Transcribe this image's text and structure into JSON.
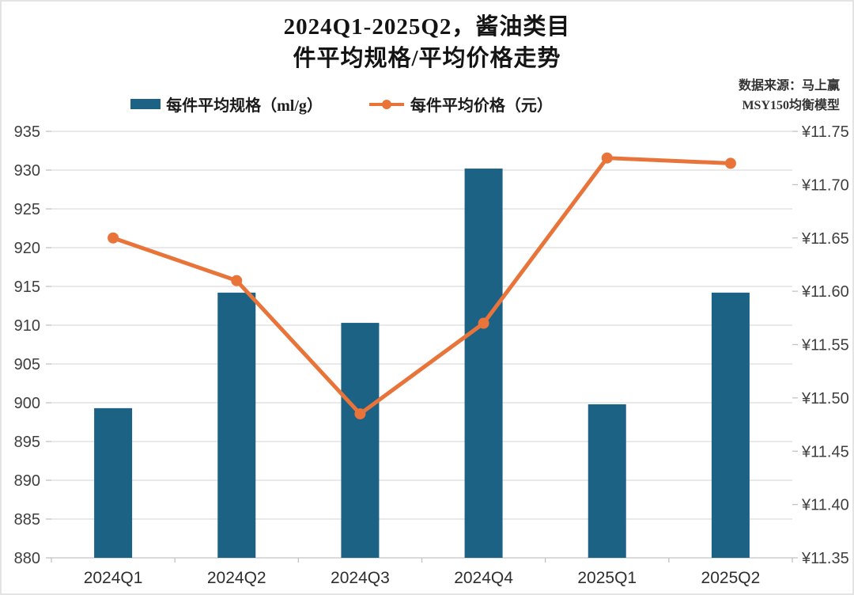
{
  "header": {
    "title_line1": "2024Q1-2025Q2，酱油类目",
    "title_line2": "件平均规格/平均价格走势"
  },
  "source": {
    "line1": "数据来源：马上赢",
    "line2": "MSY150均衡模型"
  },
  "colors": {
    "bar": "#1c6285",
    "line": "#e8743a",
    "grid": "#dcdcdc",
    "axis_line": "#c3c3c3",
    "axis_text": "#3f3f3f"
  },
  "chart_data": {
    "type": "bar+line combo (dual axis)",
    "categories": [
      "2024Q1",
      "2024Q2",
      "2024Q3",
      "2024Q4",
      "2025Q1",
      "2025Q2"
    ],
    "series": [
      {
        "name": "每件平均规格（ml/g）",
        "type": "bar",
        "axis": "left",
        "values": [
          899.3,
          914.2,
          910.3,
          930.2,
          899.8,
          914.2
        ]
      },
      {
        "name": "每件平均价格（元）",
        "type": "line",
        "axis": "right",
        "values": [
          11.65,
          11.61,
          11.485,
          11.57,
          11.725,
          11.72
        ]
      }
    ],
    "left_axis": {
      "min": 880,
      "max": 935,
      "step": 5,
      "tick_labels": [
        "935",
        "930",
        "925",
        "920",
        "915",
        "910",
        "905",
        "900",
        "895",
        "890",
        "885",
        "880"
      ]
    },
    "right_axis": {
      "min": 11.35,
      "max": 11.75,
      "step": 0.05,
      "tick_labels": [
        "¥11.75",
        "¥11.70",
        "¥11.65",
        "¥11.60",
        "¥11.55",
        "¥11.50",
        "¥11.45",
        "¥11.40",
        "¥11.35"
      ]
    },
    "grid": "horizontal gridlines at left-axis ticks",
    "legend_position": "top-center"
  }
}
